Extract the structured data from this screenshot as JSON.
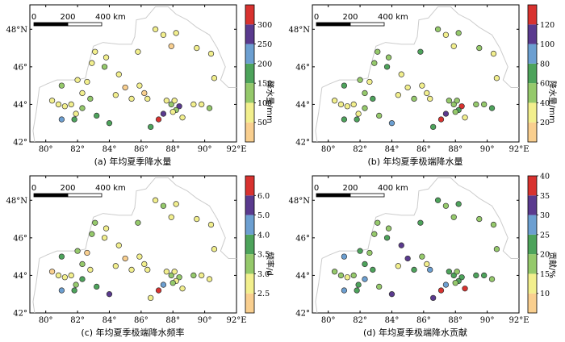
{
  "axes": {
    "lon_ticks": [
      "80°",
      "82°",
      "84°",
      "86°",
      "88°",
      "90°",
      "92°E"
    ],
    "lat_ticks": [
      "42°",
      "44°",
      "46°",
      "48°N"
    ]
  },
  "scale_bar": {
    "labels": [
      "0",
      "200",
      "400 km"
    ]
  },
  "station_colors": {
    "marker_stroke": "#333333",
    "boundary": "#cccccc"
  },
  "panels": [
    {
      "caption": "(a) 年均夏季降水量",
      "colorbar_label": "降水量/mm",
      "ticks": [
        "50",
        "100",
        "150",
        "200",
        "250",
        "300"
      ],
      "colors": [
        "#f9cf8f",
        "#f2ef8d",
        "#95c96b",
        "#4da35b",
        "#6c9fd1",
        "#5a3a8e",
        "#d8322f"
      ],
      "bounds": [
        0,
        50,
        100,
        150,
        200,
        250,
        300,
        350
      ]
    },
    {
      "caption": "(b) 年均夏季极端降水量",
      "colorbar_label": "降水量/mm",
      "ticks": [
        "20",
        "40",
        "60",
        "80",
        "100",
        "120"
      ],
      "colors": [
        "#f9cf8f",
        "#f2ef8d",
        "#95c96b",
        "#4da35b",
        "#6c9fd1",
        "#5a3a8e",
        "#d8322f"
      ],
      "bounds": [
        0,
        20,
        40,
        60,
        80,
        100,
        120,
        140
      ]
    },
    {
      "caption": "(c) 年均夏季极端降水频率",
      "colorbar_label": "频率/d",
      "ticks": [
        "2.5",
        "3.0",
        "3.5",
        "4.0",
        "5.0",
        "6.0"
      ],
      "colors": [
        "#f9cf8f",
        "#f2ef8d",
        "#95c96b",
        "#4da35b",
        "#6c9fd1",
        "#5a3a8e",
        "#d8322f"
      ],
      "bounds": [
        2.0,
        2.5,
        3.0,
        3.5,
        4.0,
        5.0,
        6.0,
        7.0
      ]
    },
    {
      "caption": "(d) 年均夏季极端降水贡献",
      "colorbar_label": "贡献/%",
      "ticks": [
        "10",
        "15",
        "20",
        "25",
        "30",
        "35",
        "40"
      ],
      "colors": [
        "#f9cf8f",
        "#f2ef8d",
        "#95c96b",
        "#4da35b",
        "#6c9fd1",
        "#5a3a8e",
        "#d8322f"
      ],
      "bounds": [
        5,
        10,
        15,
        20,
        25,
        30,
        35,
        45
      ]
    }
  ],
  "stations": [
    {
      "lon": 86.9,
      "lat": 48.0,
      "v": [
        70,
        55,
        2.8,
        22
      ]
    },
    {
      "lon": 87.4,
      "lat": 47.7,
      "v": [
        60,
        35,
        3.0,
        18
      ]
    },
    {
      "lon": 88.2,
      "lat": 47.8,
      "v": [
        70,
        40,
        2.9,
        20
      ]
    },
    {
      "lon": 87.9,
      "lat": 47.1,
      "v": [
        40,
        25,
        2.6,
        15
      ]
    },
    {
      "lon": 89.5,
      "lat": 47.0,
      "v": [
        60,
        40,
        2.8,
        18
      ]
    },
    {
      "lon": 90.4,
      "lat": 46.7,
      "v": [
        50,
        30,
        2.6,
        16
      ]
    },
    {
      "lon": 85.8,
      "lat": 46.8,
      "v": [
        90,
        65,
        3.2,
        22
      ]
    },
    {
      "lon": 83.1,
      "lat": 46.8,
      "v": [
        80,
        45,
        3.3,
        15
      ]
    },
    {
      "lon": 83.8,
      "lat": 46.5,
      "v": [
        70,
        50,
        2.7,
        18
      ]
    },
    {
      "lon": 82.9,
      "lat": 46.2,
      "v": [
        80,
        40,
        3.0,
        17
      ]
    },
    {
      "lon": 83.7,
      "lat": 46.0,
      "v": [
        110,
        70,
        2.6,
        22
      ]
    },
    {
      "lon": 90.6,
      "lat": 45.4,
      "v": [
        60,
        30,
        2.8,
        16
      ]
    },
    {
      "lon": 84.6,
      "lat": 45.6,
      "v": [
        70,
        30,
        2.8,
        30
      ]
    },
    {
      "lon": 82.0,
      "lat": 45.3,
      "v": [
        90,
        50,
        3.0,
        22
      ]
    },
    {
      "lon": 81.0,
      "lat": 45.0,
      "v": [
        120,
        60,
        3.5,
        25
      ]
    },
    {
      "lon": 85.9,
      "lat": 45.0,
      "v": [
        60,
        30,
        2.6,
        18
      ]
    },
    {
      "lon": 82.6,
      "lat": 45.2,
      "v": [
        50,
        25,
        2.3,
        15
      ]
    },
    {
      "lon": 84.4,
      "lat": 44.5,
      "v": [
        60,
        30,
        2.7,
        13
      ]
    },
    {
      "lon": 85.0,
      "lat": 44.9,
      "v": [
        40,
        20,
        2.4,
        30
      ]
    },
    {
      "lon": 86.2,
      "lat": 44.6,
      "v": [
        40,
        25,
        2.5,
        12
      ]
    },
    {
      "lon": 85.4,
      "lat": 44.3,
      "v": [
        60,
        40,
        2.6,
        24
      ]
    },
    {
      "lon": 86.4,
      "lat": 44.3,
      "v": [
        60,
        30,
        2.8,
        26
      ]
    },
    {
      "lon": 80.4,
      "lat": 44.2,
      "v": [
        50,
        20,
        2.3,
        15
      ]
    },
    {
      "lon": 80.8,
      "lat": 44.0,
      "v": [
        70,
        35,
        2.6,
        16
      ]
    },
    {
      "lon": 81.2,
      "lat": 43.9,
      "v": [
        60,
        25,
        2.8,
        12
      ]
    },
    {
      "lon": 81.6,
      "lat": 44.0,
      "v": [
        70,
        30,
        2.6,
        15
      ]
    },
    {
      "lon": 82.3,
      "lat": 44.6,
      "v": [
        90,
        40,
        3.2,
        22
      ]
    },
    {
      "lon": 82.8,
      "lat": 44.3,
      "v": [
        120,
        60,
        2.9,
        20
      ]
    },
    {
      "lon": 82.3,
      "lat": 43.8,
      "v": [
        110,
        45,
        3.5,
        25
      ]
    },
    {
      "lon": 81.9,
      "lat": 43.5,
      "v": [
        80,
        35,
        3.0,
        20
      ]
    },
    {
      "lon": 81.0,
      "lat": 43.2,
      "v": [
        220,
        75,
        4.5,
        28
      ]
    },
    {
      "lon": 81.8,
      "lat": 43.2,
      "v": [
        160,
        60,
        3.8,
        22
      ]
    },
    {
      "lon": 83.2,
      "lat": 43.4,
      "v": [
        150,
        50,
        3.8,
        18
      ]
    },
    {
      "lon": 84.0,
      "lat": 43.0,
      "v": [
        160,
        90,
        5.5,
        32
      ]
    },
    {
      "lon": 86.6,
      "lat": 42.8,
      "v": [
        150,
        60,
        2.6,
        32
      ]
    },
    {
      "lon": 87.1,
      "lat": 43.2,
      "v": [
        320,
        130,
        6.2,
        38
      ]
    },
    {
      "lon": 87.4,
      "lat": 43.5,
      "v": [
        270,
        110,
        4.5,
        26
      ]
    },
    {
      "lon": 87.6,
      "lat": 44.2,
      "v": [
        90,
        40,
        2.8,
        20
      ]
    },
    {
      "lon": 87.9,
      "lat": 44.0,
      "v": [
        110,
        50,
        3.2,
        22
      ]
    },
    {
      "lon": 88.1,
      "lat": 44.2,
      "v": [
        90,
        45,
        2.9,
        17
      ]
    },
    {
      "lon": 88.4,
      "lat": 43.9,
      "v": [
        250,
        140,
        3.4,
        24
      ]
    },
    {
      "lon": 88.2,
      "lat": 43.7,
      "v": [
        120,
        60,
        2.5,
        20
      ]
    },
    {
      "lon": 88.0,
      "lat": 43.6,
      "v": [
        80,
        40,
        3.1,
        19
      ]
    },
    {
      "lon": 88.6,
      "lat": 43.3,
      "v": [
        60,
        30,
        2.5,
        35
      ]
    },
    {
      "lon": 89.3,
      "lat": 44.0,
      "v": [
        70,
        40,
        3.0,
        20
      ]
    },
    {
      "lon": 89.8,
      "lat": 44.0,
      "v": [
        80,
        45,
        2.7,
        22
      ]
    },
    {
      "lon": 90.3,
      "lat": 43.8,
      "v": [
        110,
        70,
        2.8,
        18
      ]
    }
  ]
}
